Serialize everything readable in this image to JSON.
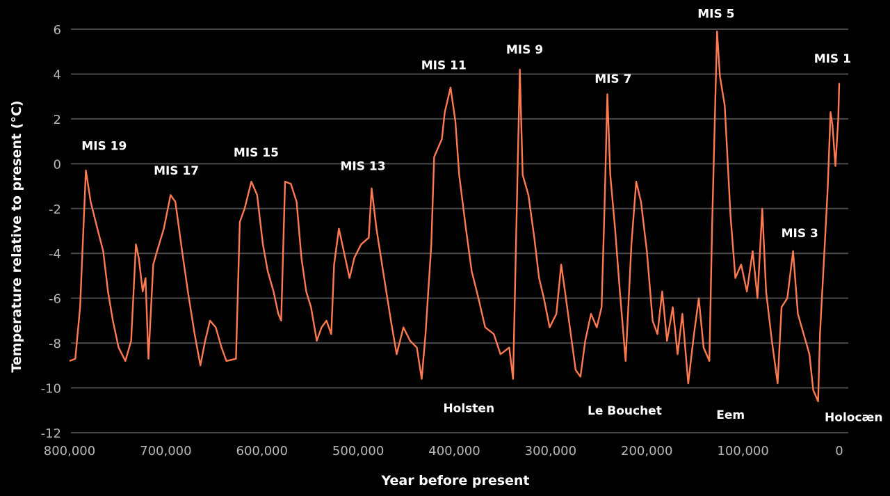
{
  "chart_data": {
    "type": "line",
    "title": "",
    "xlabel": "Year before present",
    "ylabel": "Temperature relative to present (°C)",
    "xlim": [
      800000,
      0
    ],
    "ylim": [
      -12,
      6
    ],
    "grid": true,
    "x_ticks": [
      800000,
      700000,
      600000,
      500000,
      400000,
      300000,
      200000,
      100000,
      0
    ],
    "x_tick_labels": [
      "800,000",
      "700,000",
      "600,000",
      "500,000",
      "400,000",
      "300,000",
      "200,000",
      "100,000",
      "0"
    ],
    "y_ticks": [
      6,
      4,
      2,
      0,
      -2,
      -4,
      -6,
      -8,
      -10,
      -12
    ],
    "y_tick_labels": [
      "6",
      "4",
      "2",
      "0",
      "-2",
      "-4",
      "-6",
      "-8",
      "-10",
      "-12"
    ],
    "line_color": "#ff7a50",
    "series": [
      {
        "points": [
          [
            800000,
            -8.8
          ],
          [
            794000,
            -8.7
          ],
          [
            789000,
            -6.4
          ],
          [
            783000,
            -0.3
          ],
          [
            778000,
            -1.7
          ],
          [
            771000,
            -2.9
          ],
          [
            765000,
            -3.9
          ],
          [
            760000,
            -5.7
          ],
          [
            755000,
            -7.0
          ],
          [
            749000,
            -8.2
          ],
          [
            742000,
            -8.8
          ],
          [
            736000,
            -7.9
          ],
          [
            731000,
            -3.6
          ],
          [
            728000,
            -4.2
          ],
          [
            724000,
            -5.7
          ],
          [
            721000,
            -5.1
          ],
          [
            718000,
            -8.7
          ],
          [
            713000,
            -4.5
          ],
          [
            709000,
            -3.9
          ],
          [
            702000,
            -2.9
          ],
          [
            695000,
            -1.4
          ],
          [
            690000,
            -1.7
          ],
          [
            683000,
            -3.9
          ],
          [
            677000,
            -5.7
          ],
          [
            670000,
            -7.6
          ],
          [
            664000,
            -9.0
          ],
          [
            659000,
            -7.9
          ],
          [
            654000,
            -7.0
          ],
          [
            648000,
            -7.3
          ],
          [
            642000,
            -8.2
          ],
          [
            637000,
            -8.8
          ],
          [
            627000,
            -8.7
          ],
          [
            623000,
            -2.6
          ],
          [
            618000,
            -2.0
          ],
          [
            611000,
            -0.8
          ],
          [
            605000,
            -1.4
          ],
          [
            599000,
            -3.6
          ],
          [
            594000,
            -4.8
          ],
          [
            588000,
            -5.7
          ],
          [
            583000,
            -6.7
          ],
          [
            580000,
            -7.0
          ],
          [
            576000,
            -0.8
          ],
          [
            570000,
            -0.9
          ],
          [
            564000,
            -1.7
          ],
          [
            559000,
            -4.2
          ],
          [
            554000,
            -5.7
          ],
          [
            549000,
            -6.4
          ],
          [
            543000,
            -7.9
          ],
          [
            538000,
            -7.3
          ],
          [
            533000,
            -7.0
          ],
          [
            528000,
            -7.6
          ],
          [
            525000,
            -4.5
          ],
          [
            520000,
            -2.9
          ],
          [
            515000,
            -3.9
          ],
          [
            509000,
            -5.1
          ],
          [
            504000,
            -4.2
          ],
          [
            497000,
            -3.6
          ],
          [
            489000,
            -3.3
          ],
          [
            486000,
            -1.1
          ],
          [
            481000,
            -2.9
          ],
          [
            473000,
            -5.1
          ],
          [
            466000,
            -7.0
          ],
          [
            460000,
            -8.5
          ],
          [
            453000,
            -7.3
          ],
          [
            446000,
            -7.9
          ],
          [
            439000,
            -8.2
          ],
          [
            434000,
            -9.6
          ],
          [
            430000,
            -7.6
          ],
          [
            424000,
            -3.6
          ],
          [
            421000,
            0.3
          ],
          [
            413000,
            1.1
          ],
          [
            410000,
            2.3
          ],
          [
            404000,
            3.4
          ],
          [
            399000,
            1.9
          ],
          [
            395000,
            -0.5
          ],
          [
            388000,
            -2.9
          ],
          [
            382000,
            -4.8
          ],
          [
            375000,
            -6.0
          ],
          [
            368000,
            -7.3
          ],
          [
            359000,
            -7.6
          ],
          [
            352000,
            -8.5
          ],
          [
            343000,
            -8.2
          ],
          [
            339000,
            -9.6
          ],
          [
            336000,
            -3.6
          ],
          [
            332000,
            4.2
          ],
          [
            329000,
            -0.5
          ],
          [
            323000,
            -1.4
          ],
          [
            317000,
            -3.3
          ],
          [
            312000,
            -5.1
          ],
          [
            307000,
            -6.0
          ],
          [
            301000,
            -7.3
          ],
          [
            294000,
            -6.7
          ],
          [
            289000,
            -4.5
          ],
          [
            285000,
            -5.7
          ],
          [
            280000,
            -7.3
          ],
          [
            274000,
            -9.2
          ],
          [
            269000,
            -9.5
          ],
          [
            264000,
            -7.9
          ],
          [
            258000,
            -6.7
          ],
          [
            252000,
            -7.3
          ],
          [
            247000,
            -6.4
          ],
          [
            244000,
            -2.0
          ],
          [
            241000,
            3.1
          ],
          [
            238000,
            -0.5
          ],
          [
            233000,
            -2.9
          ],
          [
            228000,
            -5.7
          ],
          [
            222000,
            -8.8
          ],
          [
            216000,
            -3.6
          ],
          [
            211000,
            -0.8
          ],
          [
            206000,
            -1.7
          ],
          [
            200000,
            -3.9
          ],
          [
            194000,
            -7.0
          ],
          [
            189000,
            -7.6
          ],
          [
            184000,
            -5.7
          ],
          [
            179000,
            -7.9
          ],
          [
            173000,
            -6.4
          ],
          [
            168000,
            -8.5
          ],
          [
            163000,
            -6.7
          ],
          [
            157000,
            -9.8
          ],
          [
            151000,
            -7.6
          ],
          [
            146000,
            -6.0
          ],
          [
            141000,
            -8.2
          ],
          [
            135000,
            -8.8
          ],
          [
            132000,
            -2.6
          ],
          [
            127000,
            5.9
          ],
          [
            124000,
            3.9
          ],
          [
            119000,
            2.6
          ],
          [
            113000,
            -2.3
          ],
          [
            108000,
            -5.1
          ],
          [
            102000,
            -4.5
          ],
          [
            96000,
            -5.7
          ],
          [
            90000,
            -3.9
          ],
          [
            85000,
            -6.0
          ],
          [
            80000,
            -2.0
          ],
          [
            76000,
            -5.7
          ],
          [
            70000,
            -7.9
          ],
          [
            64000,
            -9.8
          ],
          [
            60000,
            -6.4
          ],
          [
            54000,
            -6.0
          ],
          [
            48000,
            -3.9
          ],
          [
            43000,
            -6.7
          ],
          [
            37000,
            -7.6
          ],
          [
            31000,
            -8.5
          ],
          [
            27000,
            -10.1
          ],
          [
            22000,
            -10.6
          ],
          [
            20000,
            -7.6
          ],
          [
            15000,
            -3.6
          ],
          [
            12000,
            -1.1
          ],
          [
            9000,
            2.3
          ],
          [
            7000,
            1.7
          ],
          [
            4000,
            -0.1
          ],
          [
            1000,
            2.0
          ],
          [
            0,
            3.6
          ]
        ]
      }
    ],
    "annotations": [
      {
        "text": "MIS 19",
        "x": 764000,
        "y": 0.8
      },
      {
        "text": "MIS 17",
        "x": 689000,
        "y": -0.3
      },
      {
        "text": "MIS 15",
        "x": 606000,
        "y": 0.5
      },
      {
        "text": "MIS 13",
        "x": 495000,
        "y": -0.1
      },
      {
        "text": "MIS 11",
        "x": 411000,
        "y": 4.4
      },
      {
        "text": "MIS 9",
        "x": 327000,
        "y": 5.1
      },
      {
        "text": "MIS 7",
        "x": 235000,
        "y": 3.8
      },
      {
        "text": "MIS 5",
        "x": 128000,
        "y": 6.7
      },
      {
        "text": "MIS 3",
        "x": 41000,
        "y": -3.1
      },
      {
        "text": "MIS 1",
        "x": 7000,
        "y": 4.7
      },
      {
        "text": "Holsten",
        "x": 385000,
        "y": -10.9
      },
      {
        "text": "Le Bouchet",
        "x": 223000,
        "y": -11.0
      },
      {
        "text": "Eem",
        "x": 113000,
        "y": -11.2
      },
      {
        "text": "Holocæn",
        "x": -15000,
        "y": -11.3
      }
    ]
  }
}
